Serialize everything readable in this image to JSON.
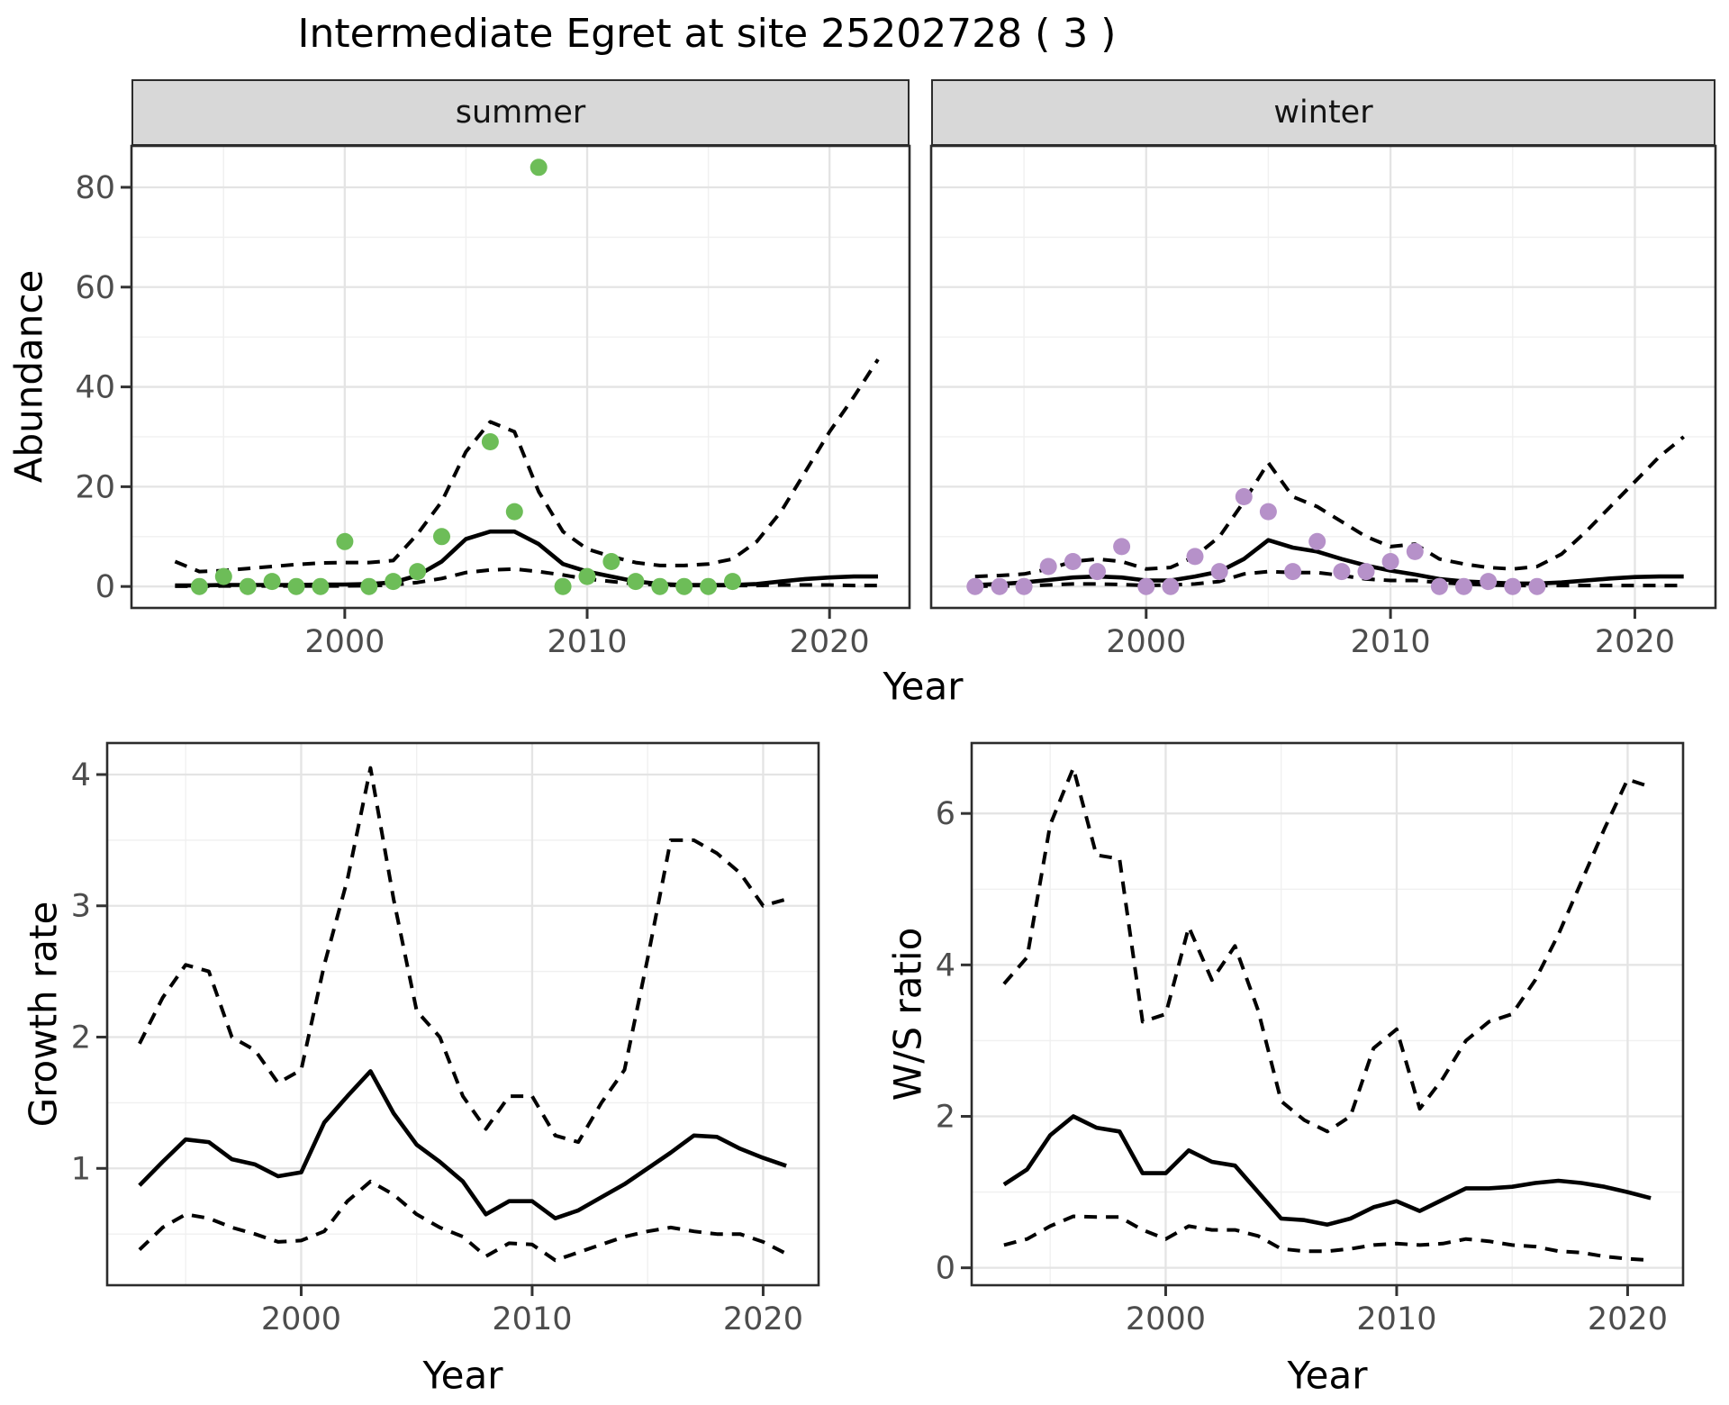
{
  "title": "Intermediate Egret at site 25202728 ( 3 )",
  "colors": {
    "summer_point": "#6dbd58",
    "winter_point": "#b691c9",
    "line": "#000000",
    "strip_bg": "#d8d8d8",
    "strip_text": "#141414",
    "grid_major": "#e4e4e4",
    "grid_minor": "#f0f0f0",
    "tick_label": "#4d4d4d",
    "tick_mark": "#333333",
    "panel_border": "#2c2c2c"
  },
  "top_row": {
    "ylabel": "Abundance",
    "xlabel": "Year",
    "facets": [
      "summer",
      "winter"
    ]
  },
  "bottom_left": {
    "ylabel": "Growth rate",
    "xlabel": "Year"
  },
  "bottom_right": {
    "ylabel": "W/S ratio",
    "xlabel": "Year"
  },
  "chart_data": [
    {
      "id": "abundance-summer",
      "type": "line+scatter",
      "facet": "summer",
      "xlabel": "Year",
      "ylabel": "Abundance",
      "xlim": [
        1991.2,
        2023.3
      ],
      "ylim": [
        -4.3,
        88.3
      ],
      "xticks": [
        2000,
        2010,
        2020
      ],
      "x_minor": [
        1995,
        2005,
        2015
      ],
      "yticks": [
        0,
        20,
        40,
        60,
        80
      ],
      "y_minor": [
        10,
        30,
        50,
        70
      ],
      "line_x": [
        1993,
        1994,
        1995,
        1996,
        1997,
        1998,
        1999,
        2000,
        2001,
        2002,
        2003,
        2004,
        2005,
        2006,
        2007,
        2008,
        2009,
        2010,
        2011,
        2012,
        2013,
        2014,
        2015,
        2016,
        2017,
        2018,
        2019,
        2020,
        2021,
        2022
      ],
      "series": [
        {
          "name": "median",
          "style": "solid",
          "values": [
            0.2,
            0.2,
            0.3,
            0.3,
            0.3,
            0.3,
            0.4,
            0.4,
            0.5,
            0.8,
            2.2,
            5.0,
            9.5,
            11.0,
            11.0,
            8.5,
            4.5,
            3.0,
            2.0,
            1.0,
            0.5,
            0.3,
            0.3,
            0.3,
            0.5,
            1.0,
            1.5,
            1.8,
            2.0,
            2.0
          ]
        },
        {
          "name": "upper-ci",
          "style": "dashed",
          "values": [
            5.0,
            3.0,
            3.2,
            3.6,
            4.0,
            4.4,
            4.7,
            4.8,
            4.8,
            5.2,
            10.5,
            17.0,
            27.0,
            33.0,
            31.0,
            19.0,
            11.0,
            7.5,
            6.0,
            4.8,
            4.2,
            4.2,
            4.5,
            5.5,
            9.0,
            15.0,
            23.0,
            31.0,
            38.0,
            45.5
          ]
        },
        {
          "name": "lower-ci",
          "style": "dashed",
          "values": [
            0.05,
            0.05,
            0.1,
            0.1,
            0.1,
            0.1,
            0.1,
            0.1,
            0.15,
            0.3,
            0.8,
            1.6,
            2.8,
            3.3,
            3.5,
            3.0,
            2.3,
            1.5,
            1.0,
            0.5,
            0.3,
            0.2,
            0.2,
            0.2,
            0.2,
            0.3,
            0.3,
            0.3,
            0.2,
            0.2
          ]
        }
      ],
      "points": {
        "color": "#6dbd58",
        "x": [
          1994,
          1995,
          1996,
          1997,
          1998,
          1999,
          2000,
          2001,
          2002,
          2003,
          2004,
          2006,
          2007,
          2008,
          2009,
          2010,
          2011,
          2012,
          2013,
          2014,
          2015,
          2016
        ],
        "y": [
          0,
          2,
          0,
          1,
          0,
          0,
          9,
          0,
          1,
          3,
          10,
          29,
          15,
          84,
          0,
          2,
          5,
          1,
          0,
          0,
          0,
          1
        ]
      }
    },
    {
      "id": "abundance-winter",
      "type": "line+scatter",
      "facet": "winter",
      "xlabel": "Year",
      "ylabel": "Abundance",
      "xlim": [
        1991.2,
        2023.3
      ],
      "ylim": [
        -4.3,
        88.3
      ],
      "xticks": [
        2000,
        2010,
        2020
      ],
      "x_minor": [
        1995,
        2005,
        2015
      ],
      "yticks": [
        0,
        20,
        40,
        60,
        80
      ],
      "y_minor": [
        10,
        30,
        50,
        70
      ],
      "line_x": [
        1993,
        1994,
        1995,
        1996,
        1997,
        1998,
        1999,
        2000,
        2001,
        2002,
        2003,
        2004,
        2005,
        2006,
        2007,
        2008,
        2009,
        2010,
        2011,
        2012,
        2013,
        2014,
        2015,
        2016,
        2017,
        2018,
        2019,
        2020,
        2021,
        2022
      ],
      "series": [
        {
          "name": "median",
          "style": "solid",
          "values": [
            0.3,
            0.5,
            0.8,
            1.3,
            1.8,
            2.0,
            1.8,
            1.2,
            1.2,
            2.0,
            3.0,
            5.5,
            9.3,
            7.8,
            7.0,
            5.5,
            4.2,
            3.2,
            2.4,
            1.5,
            1.0,
            0.8,
            0.6,
            0.6,
            0.8,
            1.2,
            1.6,
            1.9,
            2.0,
            2.0
          ]
        },
        {
          "name": "upper-ci",
          "style": "dashed",
          "values": [
            2.0,
            2.2,
            2.5,
            3.5,
            5.0,
            5.5,
            5.0,
            3.5,
            3.8,
            6.0,
            10.0,
            17.0,
            24.8,
            18.0,
            16.0,
            13.0,
            10.0,
            8.0,
            8.5,
            5.5,
            4.5,
            3.8,
            3.5,
            4.0,
            6.5,
            11.0,
            16.0,
            21.0,
            26.0,
            30.0
          ]
        },
        {
          "name": "lower-ci",
          "style": "dashed",
          "values": [
            0.05,
            0.1,
            0.1,
            0.3,
            0.5,
            0.5,
            0.4,
            0.2,
            0.3,
            0.5,
            1.0,
            2.5,
            3.0,
            2.8,
            2.8,
            2.2,
            1.5,
            1.2,
            1.2,
            0.8,
            0.5,
            0.3,
            0.2,
            0.2,
            0.2,
            0.2,
            0.2,
            0.2,
            0.2,
            0.2
          ]
        }
      ],
      "points": {
        "color": "#b691c9",
        "x": [
          1993,
          1994,
          1995,
          1996,
          1997,
          1998,
          1999,
          2000,
          2001,
          2002,
          2003,
          2004,
          2005,
          2006,
          2007,
          2008,
          2009,
          2010,
          2011,
          2012,
          2013,
          2014,
          2015,
          2016
        ],
        "y": [
          0,
          0,
          0,
          4,
          5,
          3,
          8,
          0,
          0,
          6,
          3,
          18,
          15,
          3,
          9,
          3,
          3,
          5,
          7,
          0,
          0,
          1,
          0,
          0
        ]
      }
    },
    {
      "id": "growth-rate",
      "type": "line",
      "facet": null,
      "xlabel": "Year",
      "ylabel": "Growth rate",
      "xlim": [
        1991.6,
        2022.4
      ],
      "ylim": [
        0.11,
        4.24
      ],
      "xticks": [
        2000,
        2010,
        2020
      ],
      "x_minor": [
        1995,
        2005,
        2015
      ],
      "yticks": [
        1,
        2,
        3,
        4
      ],
      "y_minor": [
        0.5,
        1.5,
        2.5,
        3.5
      ],
      "line_x": [
        1993,
        1994,
        1995,
        1996,
        1997,
        1998,
        1999,
        2000,
        2001,
        2002,
        2003,
        2004,
        2005,
        2006,
        2007,
        2008,
        2009,
        2010,
        2011,
        2012,
        2013,
        2014,
        2015,
        2016,
        2017,
        2018,
        2019,
        2020,
        2021
      ],
      "series": [
        {
          "name": "median",
          "style": "solid",
          "values": [
            0.87,
            1.05,
            1.22,
            1.2,
            1.07,
            1.03,
            0.94,
            0.97,
            1.35,
            1.55,
            1.74,
            1.42,
            1.18,
            1.05,
            0.9,
            0.65,
            0.75,
            0.75,
            0.62,
            0.68,
            0.78,
            0.88,
            1.0,
            1.12,
            1.25,
            1.24,
            1.15,
            1.08,
            1.02
          ]
        },
        {
          "name": "upper-ci",
          "style": "dashed",
          "values": [
            1.95,
            2.3,
            2.55,
            2.5,
            2.0,
            1.9,
            1.65,
            1.75,
            2.55,
            3.2,
            4.05,
            3.05,
            2.2,
            2.0,
            1.55,
            1.3,
            1.55,
            1.55,
            1.25,
            1.2,
            1.5,
            1.75,
            2.6,
            3.5,
            3.5,
            3.4,
            3.25,
            3.0,
            3.05
          ]
        },
        {
          "name": "lower-ci",
          "style": "dashed",
          "values": [
            0.38,
            0.55,
            0.65,
            0.62,
            0.55,
            0.5,
            0.44,
            0.45,
            0.52,
            0.75,
            0.9,
            0.8,
            0.65,
            0.55,
            0.48,
            0.33,
            0.43,
            0.42,
            0.3,
            0.36,
            0.42,
            0.48,
            0.52,
            0.55,
            0.52,
            0.5,
            0.5,
            0.44,
            0.35
          ]
        }
      ],
      "points": null
    },
    {
      "id": "ws-ratio",
      "type": "line",
      "facet": null,
      "xlabel": "Year",
      "ylabel": "W/S ratio",
      "xlim": [
        1991.6,
        2022.4
      ],
      "ylim": [
        -0.23,
        6.93
      ],
      "xticks": [
        2000,
        2010,
        2020
      ],
      "x_minor": [
        1995,
        2005,
        2015
      ],
      "yticks": [
        0,
        2,
        4,
        6
      ],
      "y_minor": [
        1,
        3,
        5
      ],
      "line_x": [
        1993,
        1994,
        1995,
        1996,
        1997,
        1998,
        1999,
        2000,
        2001,
        2002,
        2003,
        2004,
        2005,
        2006,
        2007,
        2008,
        2009,
        2010,
        2011,
        2012,
        2013,
        2014,
        2015,
        2016,
        2017,
        2018,
        2019,
        2020,
        2021
      ],
      "series": [
        {
          "name": "median",
          "style": "solid",
          "values": [
            1.1,
            1.3,
            1.75,
            2.0,
            1.85,
            1.8,
            1.25,
            1.25,
            1.55,
            1.4,
            1.35,
            1.0,
            0.65,
            0.63,
            0.57,
            0.65,
            0.8,
            0.88,
            0.75,
            0.9,
            1.05,
            1.05,
            1.07,
            1.12,
            1.15,
            1.12,
            1.07,
            1.0,
            0.92
          ]
        },
        {
          "name": "upper-ci",
          "style": "dashed",
          "values": [
            3.75,
            4.1,
            5.85,
            6.6,
            5.45,
            5.4,
            3.25,
            3.35,
            4.5,
            3.8,
            4.25,
            3.4,
            2.2,
            1.95,
            1.8,
            2.0,
            2.9,
            3.15,
            2.1,
            2.5,
            3.0,
            3.25,
            3.35,
            3.8,
            4.4,
            5.1,
            5.8,
            6.45,
            6.35
          ]
        },
        {
          "name": "lower-ci",
          "style": "dashed",
          "values": [
            0.3,
            0.38,
            0.55,
            0.68,
            0.67,
            0.67,
            0.5,
            0.38,
            0.55,
            0.5,
            0.5,
            0.42,
            0.25,
            0.22,
            0.22,
            0.25,
            0.3,
            0.32,
            0.3,
            0.32,
            0.38,
            0.35,
            0.3,
            0.28,
            0.22,
            0.2,
            0.15,
            0.12,
            0.1
          ]
        }
      ],
      "points": null
    }
  ]
}
